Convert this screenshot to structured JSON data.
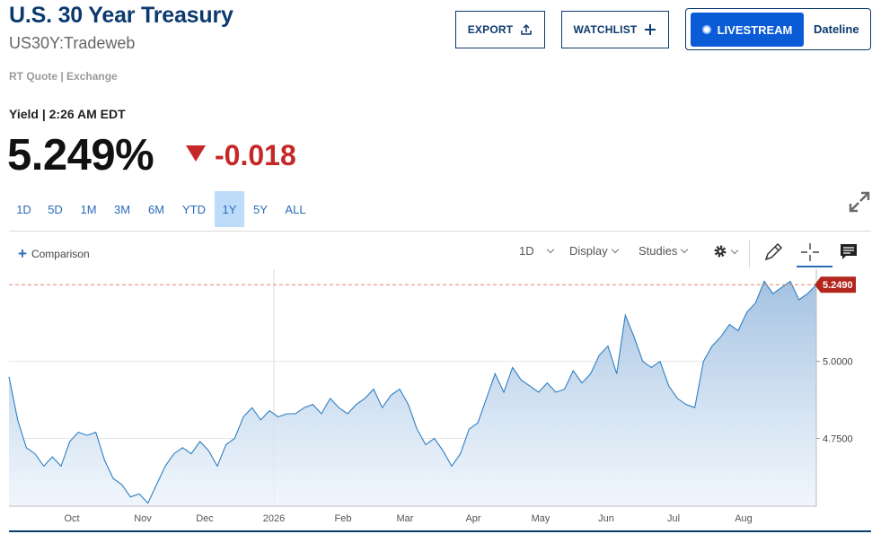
{
  "header": {
    "title": "U.S. 30 Year Treasury",
    "symbol": "US30Y:Tradeweb",
    "quote_source": "RT Quote | Exchange"
  },
  "actions": {
    "export_label": "EXPORT",
    "watchlist_label": "WATCHLIST",
    "livestream_label": "LIVESTREAM",
    "dateline_label": "Dateline"
  },
  "quote": {
    "yield_label": "Yield | 2:26 AM EDT",
    "price": "5.249%",
    "change": "-0.018",
    "change_color": "#c62828"
  },
  "ranges": [
    "1D",
    "5D",
    "1M",
    "3M",
    "6M",
    "YTD",
    "1Y",
    "5Y",
    "ALL"
  ],
  "active_range": "1Y",
  "toolbar": {
    "comparison_label": "Comparison",
    "interval_label": "1D",
    "display_label": "Display",
    "studies_label": "Studies"
  },
  "icons": [
    "upload-icon",
    "plus-icon",
    "expand-icon",
    "gear-icon",
    "pencil-icon",
    "crosshair-icon",
    "comment-icon"
  ],
  "colors": {
    "brand": "#0c3a6e",
    "accent": "#0a5bd6",
    "line": "#2f7fc1",
    "down": "#c62828"
  },
  "chart_data": {
    "type": "area",
    "x_labels": [
      "Oct",
      "Nov",
      "Dec",
      "2026",
      "Feb",
      "Mar",
      "Apr",
      "May",
      "Jun",
      "Jul",
      "Aug"
    ],
    "y_ticks": [
      "5.0000",
      "4.7500"
    ],
    "ylim": [
      4.53,
      5.27
    ],
    "last_value_label": "5.2490",
    "last_value": 5.249,
    "values": [
      4.95,
      4.81,
      4.72,
      4.7,
      4.66,
      4.69,
      4.66,
      4.74,
      4.77,
      4.76,
      4.77,
      4.68,
      4.62,
      4.6,
      4.56,
      4.57,
      4.54,
      4.6,
      4.66,
      4.7,
      4.72,
      4.7,
      4.74,
      4.71,
      4.66,
      4.73,
      4.75,
      4.82,
      4.85,
      4.81,
      4.84,
      4.82,
      4.83,
      4.83,
      4.85,
      4.86,
      4.83,
      4.88,
      4.85,
      4.83,
      4.86,
      4.88,
      4.91,
      4.85,
      4.89,
      4.91,
      4.86,
      4.78,
      4.73,
      4.75,
      4.71,
      4.66,
      4.7,
      4.78,
      4.8,
      4.88,
      4.96,
      4.9,
      4.98,
      4.94,
      4.92,
      4.9,
      4.93,
      4.9,
      4.91,
      4.97,
      4.93,
      4.96,
      5.02,
      5.05,
      4.96,
      5.15,
      5.08,
      5.0,
      4.98,
      5.0,
      4.92,
      4.88,
      4.86,
      4.85,
      5.0,
      5.05,
      5.08,
      5.12,
      5.1,
      5.16,
      5.19,
      5.26,
      5.22,
      5.24,
      5.26,
      5.2,
      5.22,
      5.249
    ]
  }
}
